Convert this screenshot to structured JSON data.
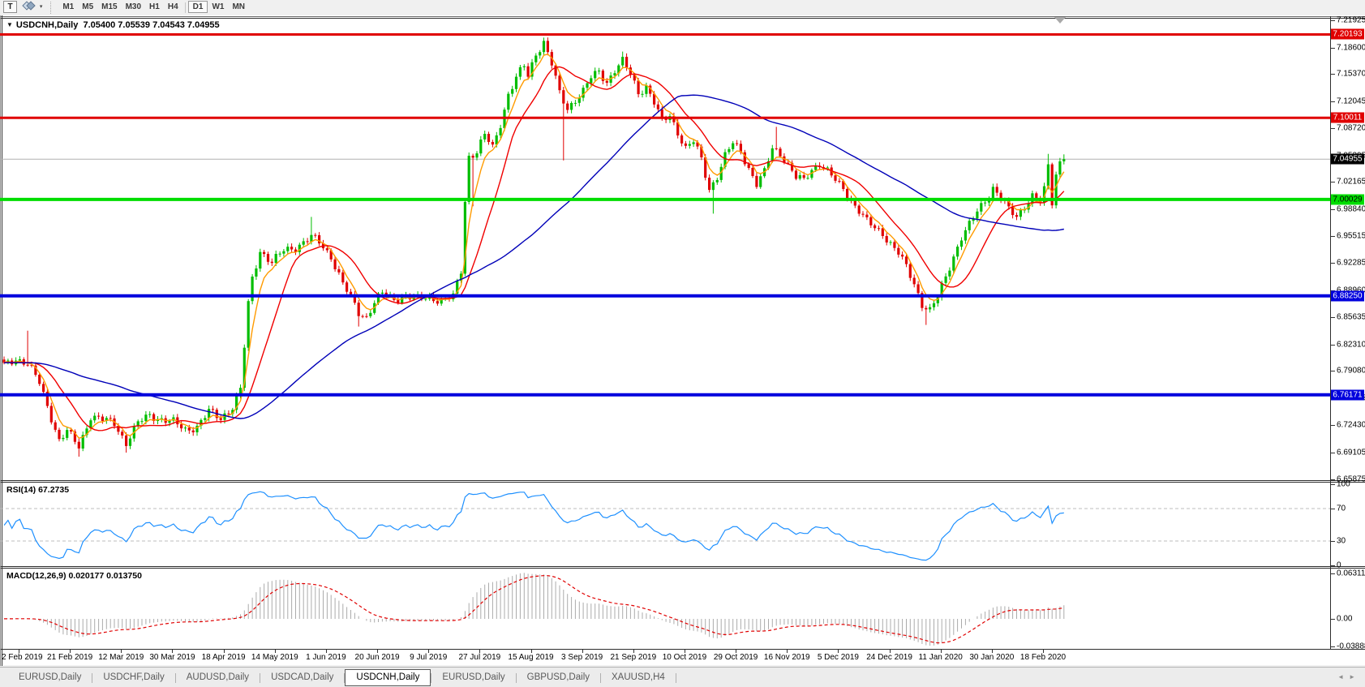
{
  "toolbar": {
    "text_tool_label": "T",
    "timeframes": [
      "M1",
      "M5",
      "M15",
      "M30",
      "H1",
      "H4",
      "D1",
      "W1",
      "MN"
    ],
    "active_timeframe": "D1"
  },
  "chart": {
    "symbol_text": "USDCNH,Daily",
    "ohlc_text": "7.05400 7.05539 7.04543 7.04955"
  },
  "price_axis": {
    "ticks": [
      "7.21925",
      "7.18600",
      "7.15370",
      "7.12045",
      "7.08720",
      "7.05395",
      "7.02165",
      "6.98840",
      "6.95515",
      "6.92285",
      "6.88960",
      "6.85635",
      "6.82310",
      "6.79080",
      "6.75755",
      "6.72430",
      "6.69105",
      "6.65875"
    ]
  },
  "indicators": {
    "rsi": {
      "label": "RSI(14) 67.2735",
      "period": 14,
      "value": 67.2735,
      "levels": [
        "100",
        "70",
        "30",
        "0"
      ],
      "level_values": [
        100,
        70,
        30,
        0
      ],
      "line_color": "#1e90ff"
    },
    "macd": {
      "label": "MACD(12,26,9) 0.020177 0.013750",
      "params": [
        12,
        26,
        9
      ],
      "macd_value": 0.020177,
      "signal_value": 0.01375,
      "axis": [
        "0.063113",
        "0.00",
        "-0.038887"
      ],
      "axis_values": [
        0.063113,
        0.0,
        -0.038887
      ],
      "hist_color": "#ababab",
      "signal_color": "#e00000"
    }
  },
  "time_axis": {
    "labels": [
      "2 Feb 2019",
      "21 Feb 2019",
      "12 Mar 2019",
      "30 Mar 2019",
      "18 Apr 2019",
      "14 May 2019",
      "1 Jun 2019",
      "20 Jun 2019",
      "9 Jul 2019",
      "27 Jul 2019",
      "15 Aug 2019",
      "3 Sep 2019",
      "21 Sep 2019",
      "10 Oct 2019",
      "29 Oct 2019",
      "16 Nov 2019",
      "5 Dec 2019",
      "24 Dec 2019",
      "11 Jan 2020",
      "30 Jan 2020",
      "18 Feb 2020"
    ]
  },
  "tabs": {
    "items": [
      "EURUSD,Daily",
      "USDCHF,Daily",
      "AUDUSD,Daily",
      "USDCAD,Daily",
      "USDCNH,Daily",
      "EURUSD,Daily",
      "GBPUSD,Daily",
      "XAUUSD,H4"
    ],
    "active_index": 4
  },
  "chart_data": {
    "type": "candlestick",
    "symbol": "USDCNH",
    "timeframe": "Daily",
    "last_ohlc": {
      "open": 7.054,
      "high": 7.05539,
      "low": 7.04543,
      "close": 7.04955
    },
    "current_price": 7.04955,
    "current_price_line_color": "#b0b0b0",
    "current_price_label_bg": "#000000",
    "up_color": "#00bd00",
    "down_color": "#e00000",
    "y_axis_top": 7.21925,
    "y_axis_bottom": 6.65875,
    "bars": 270,
    "price_levels": [
      {
        "label": "7.20193",
        "value": 7.20193,
        "color": "#e00000",
        "label_fg": "#ffffff",
        "width": 3
      },
      {
        "label": "7.10011",
        "value": 7.10011,
        "color": "#e00000",
        "label_fg": "#ffffff",
        "width": 3
      },
      {
        "label": "7.00029",
        "value": 7.00029,
        "color": "#00dd00",
        "label_fg": "#000000",
        "width": 4
      },
      {
        "label": "6.88250",
        "value": 6.8825,
        "color": "#0000dd",
        "label_fg": "#ffffff",
        "width": 4
      },
      {
        "label": "6.76171",
        "value": 6.76171,
        "color": "#0000dd",
        "label_fg": "#ffffff",
        "width": 4
      }
    ],
    "moving_averages": [
      {
        "type": "ema",
        "period": 5,
        "color": "#ff9b00"
      },
      {
        "type": "sma",
        "period": 13,
        "color": "#f00000"
      },
      {
        "type": "sma",
        "period": 55,
        "color": "#0000b8"
      }
    ],
    "close_path": [
      [
        0,
        6.797
      ],
      [
        3,
        6.806
      ],
      [
        6,
        6.8
      ],
      [
        9,
        6.776
      ],
      [
        12,
        6.734
      ],
      [
        14,
        6.706
      ],
      [
        16,
        6.717
      ],
      [
        19,
        6.698
      ],
      [
        22,
        6.736
      ],
      [
        25,
        6.731
      ],
      [
        28,
        6.727
      ],
      [
        31,
        6.703
      ],
      [
        34,
        6.727
      ],
      [
        37,
        6.737
      ],
      [
        40,
        6.732
      ],
      [
        43,
        6.728
      ],
      [
        46,
        6.719
      ],
      [
        49,
        6.723
      ],
      [
        52,
        6.741
      ],
      [
        55,
        6.733
      ],
      [
        58,
        6.747
      ],
      [
        60,
        6.768
      ],
      [
        61,
        6.82
      ],
      [
        62,
        6.872
      ],
      [
        63,
        6.904
      ],
      [
        65,
        6.938
      ],
      [
        68,
        6.923
      ],
      [
        71,
        6.938
      ],
      [
        74,
        6.942
      ],
      [
        78,
        6.954
      ],
      [
        80,
        6.948
      ],
      [
        83,
        6.931
      ],
      [
        86,
        6.897
      ],
      [
        88,
        6.88
      ],
      [
        90,
        6.862
      ],
      [
        92,
        6.857
      ],
      [
        94,
        6.875
      ],
      [
        96,
        6.885
      ],
      [
        99,
        6.878
      ],
      [
        102,
        6.883
      ],
      [
        105,
        6.878
      ],
      [
        108,
        6.881
      ],
      [
        111,
        6.877
      ],
      [
        114,
        6.881
      ],
      [
        116,
        6.913
      ],
      [
        117,
        6.999
      ],
      [
        118,
        7.053
      ],
      [
        120,
        7.059
      ],
      [
        122,
        7.079
      ],
      [
        124,
        7.063
      ],
      [
        126,
        7.093
      ],
      [
        128,
        7.129
      ],
      [
        130,
        7.149
      ],
      [
        132,
        7.163
      ],
      [
        133,
        7.151
      ],
      [
        135,
        7.179
      ],
      [
        137,
        7.193
      ],
      [
        139,
        7.166
      ],
      [
        141,
        7.129
      ],
      [
        143,
        7.111
      ],
      [
        145,
        7.123
      ],
      [
        147,
        7.133
      ],
      [
        149,
        7.149
      ],
      [
        151,
        7.156
      ],
      [
        153,
        7.144
      ],
      [
        155,
        7.159
      ],
      [
        157,
        7.169
      ],
      [
        159,
        7.153
      ],
      [
        161,
        7.131
      ],
      [
        163,
        7.139
      ],
      [
        165,
        7.119
      ],
      [
        167,
        7.095
      ],
      [
        169,
        7.103
      ],
      [
        171,
        7.083
      ],
      [
        173,
        7.063
      ],
      [
        175,
        7.071
      ],
      [
        177,
        7.049
      ],
      [
        179,
        7.013
      ],
      [
        181,
        7.029
      ],
      [
        183,
        7.053
      ],
      [
        185,
        7.069
      ],
      [
        187,
        7.059
      ],
      [
        189,
        7.039
      ],
      [
        191,
        7.019
      ],
      [
        193,
        7.033
      ],
      [
        195,
        7.063
      ],
      [
        197,
        7.057
      ],
      [
        199,
        7.043
      ],
      [
        201,
        7.027
      ],
      [
        203,
        7.023
      ],
      [
        205,
        7.037
      ],
      [
        207,
        7.045
      ],
      [
        209,
        7.035
      ],
      [
        211,
        7.023
      ],
      [
        213,
        7.013
      ],
      [
        215,
        6.999
      ],
      [
        217,
        6.987
      ],
      [
        219,
        6.973
      ],
      [
        221,
        6.965
      ],
      [
        223,
        6.959
      ],
      [
        225,
        6.947
      ],
      [
        227,
        6.935
      ],
      [
        229,
        6.917
      ],
      [
        231,
        6.897
      ],
      [
        233,
        6.873
      ],
      [
        235,
        6.865
      ],
      [
        237,
        6.881
      ],
      [
        239,
        6.905
      ],
      [
        241,
        6.931
      ],
      [
        243,
        6.955
      ],
      [
        245,
        6.969
      ],
      [
        247,
        6.985
      ],
      [
        249,
        6.999
      ],
      [
        251,
        7.015
      ],
      [
        253,
        7.003
      ],
      [
        255,
        6.987
      ],
      [
        257,
        6.979
      ],
      [
        259,
        6.993
      ],
      [
        261,
        7.005
      ],
      [
        263,
        6.997
      ],
      [
        264,
        7.011
      ],
      [
        265,
        7.041
      ],
      [
        266,
        6.997
      ],
      [
        267,
        7.031
      ],
      [
        268,
        7.047
      ],
      [
        269,
        7.0496
      ]
    ],
    "spikes": [
      {
        "i": 6,
        "h": 6.84
      },
      {
        "i": 19,
        "l": 6.686
      },
      {
        "i": 31,
        "l": 6.691
      },
      {
        "i": 78,
        "h": 6.979
      },
      {
        "i": 90,
        "l": 6.845
      },
      {
        "i": 119,
        "l": 6.992
      },
      {
        "i": 137,
        "h": 7.198
      },
      {
        "i": 142,
        "l": 7.048
      },
      {
        "i": 157,
        "h": 7.181
      },
      {
        "i": 180,
        "l": 6.983
      },
      {
        "i": 196,
        "h": 7.089
      },
      {
        "i": 234,
        "l": 6.847
      },
      {
        "i": 265,
        "h": 7.056
      },
      {
        "i": 269,
        "h": 7.0554
      }
    ]
  }
}
